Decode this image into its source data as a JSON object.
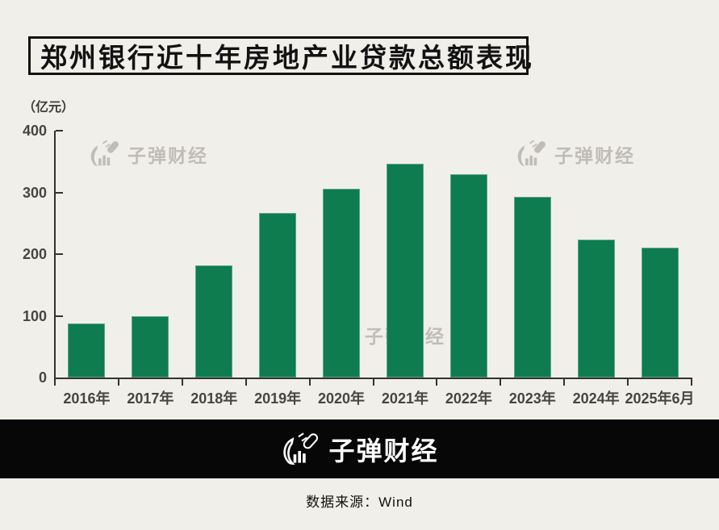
{
  "colors": {
    "background": "#f1efe9",
    "bar": "#0e7c4f",
    "axis": "#333331",
    "tick_label": "#454545",
    "title_text": "#121212",
    "footer_band": "#070707",
    "footer_text": "#ffffff",
    "watermark": "#9e9b94"
  },
  "title": {
    "text": "郑州银行近十年房地产业贷款总额表现"
  },
  "unit_label": "（亿元）",
  "chart_data": {
    "type": "bar",
    "title": "郑州银行近十年房地产业贷款总额表现",
    "categories": [
      "2016年",
      "2017年",
      "2018年",
      "2019年",
      "2020年",
      "2021年",
      "2022年",
      "2023年",
      "2024年",
      "2025年6月"
    ],
    "values": [
      88,
      100,
      182,
      267,
      306,
      346,
      330,
      293,
      223,
      211
    ],
    "xlabel": "",
    "ylabel": "（亿元）",
    "ylim": [
      0,
      400
    ],
    "yticks": [
      0,
      100,
      200,
      300,
      400
    ],
    "grid": false,
    "legend": "none",
    "bar_color": "#0e7c4f"
  },
  "watermark": {
    "text": "子弹财经"
  },
  "footer": {
    "brand": "子弹财经",
    "source": "数据来源：Wind"
  }
}
